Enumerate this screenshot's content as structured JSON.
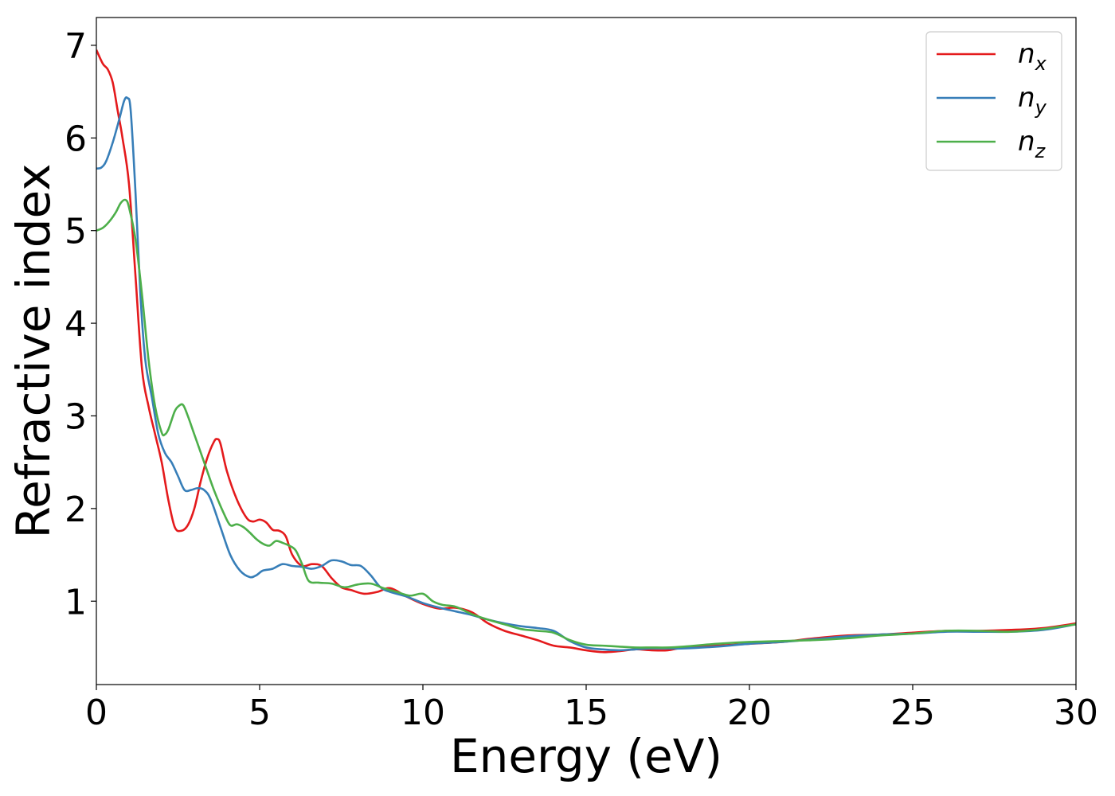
{
  "chart_data": {
    "type": "line",
    "xlabel": "Energy (eV)",
    "ylabel": "Refractive index",
    "xlim": [
      0,
      30
    ],
    "ylim": [
      0.1,
      7.3
    ],
    "xticks": [
      0,
      5,
      10,
      15,
      20,
      25,
      30
    ],
    "yticks": [
      1,
      2,
      3,
      4,
      5,
      6,
      7
    ],
    "grid": false,
    "legend_position": "top-right",
    "series": [
      {
        "name": "n",
        "subscript": "x",
        "color": "#e41a1c",
        "x": [
          0,
          0.2,
          0.35,
          0.5,
          0.65,
          0.8,
          1.0,
          1.2,
          1.4,
          1.6,
          1.8,
          2.0,
          2.2,
          2.4,
          2.6,
          2.8,
          3.0,
          3.2,
          3.4,
          3.6,
          3.7,
          3.8,
          4.0,
          4.3,
          4.6,
          4.8,
          5.0,
          5.2,
          5.4,
          5.6,
          5.8,
          6.0,
          6.3,
          6.6,
          6.9,
          7.2,
          7.5,
          7.8,
          8.2,
          8.6,
          9.0,
          9.5,
          10.0,
          10.5,
          11.0,
          11.5,
          12.0,
          12.5,
          13.0,
          13.5,
          14.0,
          14.5,
          15.0,
          15.5,
          16.0,
          16.5,
          17.0,
          17.5,
          18.0,
          19.0,
          20.0,
          21.0,
          22.0,
          23.0,
          24.0,
          25.0,
          26.0,
          27.0,
          28.0,
          29.0,
          30.0
        ],
        "values": [
          6.95,
          6.8,
          6.74,
          6.6,
          6.3,
          6.0,
          5.5,
          4.5,
          3.5,
          3.1,
          2.8,
          2.5,
          2.1,
          1.8,
          1.76,
          1.82,
          2.0,
          2.3,
          2.55,
          2.72,
          2.75,
          2.7,
          2.4,
          2.1,
          1.9,
          1.86,
          1.88,
          1.85,
          1.77,
          1.76,
          1.7,
          1.5,
          1.38,
          1.4,
          1.38,
          1.25,
          1.15,
          1.12,
          1.08,
          1.1,
          1.14,
          1.05,
          0.97,
          0.92,
          0.93,
          0.88,
          0.76,
          0.68,
          0.63,
          0.58,
          0.52,
          0.5,
          0.47,
          0.45,
          0.46,
          0.48,
          0.47,
          0.47,
          0.5,
          0.52,
          0.54,
          0.56,
          0.6,
          0.63,
          0.64,
          0.66,
          0.68,
          0.68,
          0.69,
          0.71,
          0.76
        ]
      },
      {
        "name": "n",
        "subscript": "y",
        "color": "#377eb8",
        "x": [
          0,
          0.15,
          0.3,
          0.5,
          0.7,
          0.85,
          0.95,
          1.05,
          1.2,
          1.35,
          1.5,
          1.7,
          1.9,
          2.1,
          2.3,
          2.5,
          2.7,
          2.9,
          3.1,
          3.3,
          3.5,
          3.8,
          4.1,
          4.4,
          4.7,
          4.9,
          5.1,
          5.4,
          5.7,
          6.0,
          6.3,
          6.6,
          6.9,
          7.2,
          7.5,
          7.8,
          8.1,
          8.4,
          8.7,
          9.0,
          9.5,
          10.0,
          10.5,
          11.0,
          11.5,
          12.0,
          12.5,
          13.0,
          13.5,
          14.0,
          14.5,
          15.0,
          15.5,
          16.0,
          16.5,
          17.0,
          17.5,
          18.0,
          19.0,
          20.0,
          21.0,
          22.0,
          23.0,
          24.0,
          25.0,
          26.0,
          27.0,
          28.0,
          29.0,
          30.0
        ],
        "values": [
          5.67,
          5.68,
          5.75,
          5.95,
          6.2,
          6.4,
          6.43,
          6.3,
          5.4,
          4.3,
          3.6,
          3.2,
          2.8,
          2.6,
          2.5,
          2.35,
          2.2,
          2.2,
          2.22,
          2.2,
          2.1,
          1.8,
          1.5,
          1.33,
          1.26,
          1.28,
          1.33,
          1.35,
          1.4,
          1.38,
          1.37,
          1.35,
          1.38,
          1.44,
          1.43,
          1.39,
          1.38,
          1.28,
          1.15,
          1.1,
          1.05,
          0.98,
          0.93,
          0.89,
          0.85,
          0.8,
          0.76,
          0.73,
          0.71,
          0.68,
          0.57,
          0.5,
          0.48,
          0.47,
          0.48,
          0.49,
          0.49,
          0.49,
          0.51,
          0.54,
          0.56,
          0.59,
          0.62,
          0.64,
          0.65,
          0.67,
          0.67,
          0.67,
          0.69,
          0.75
        ]
      },
      {
        "name": "n",
        "subscript": "z",
        "color": "#4daf4a",
        "x": [
          0,
          0.2,
          0.4,
          0.6,
          0.75,
          0.9,
          1.0,
          1.2,
          1.4,
          1.6,
          1.8,
          2.0,
          2.1,
          2.2,
          2.3,
          2.4,
          2.5,
          2.65,
          2.8,
          3.0,
          3.3,
          3.6,
          3.9,
          4.1,
          4.3,
          4.5,
          4.7,
          4.9,
          5.1,
          5.3,
          5.5,
          5.7,
          5.9,
          6.1,
          6.3,
          6.5,
          6.8,
          7.2,
          7.6,
          8.0,
          8.4,
          8.8,
          9.2,
          9.6,
          10.0,
          10.3,
          10.6,
          11.0,
          11.5,
          12.0,
          12.5,
          13.0,
          13.5,
          14.0,
          14.5,
          15.0,
          15.5,
          16.0,
          16.5,
          17.0,
          17.5,
          18.0,
          19.0,
          20.0,
          21.0,
          22.0,
          23.0,
          24.0,
          25.0,
          26.0,
          27.0,
          28.0,
          29.0,
          30.0
        ],
        "values": [
          5.0,
          5.03,
          5.1,
          5.2,
          5.3,
          5.33,
          5.25,
          4.9,
          4.3,
          3.6,
          3.1,
          2.82,
          2.8,
          2.85,
          2.95,
          3.05,
          3.1,
          3.12,
          3.0,
          2.8,
          2.5,
          2.2,
          1.95,
          1.82,
          1.83,
          1.8,
          1.74,
          1.67,
          1.62,
          1.6,
          1.65,
          1.63,
          1.6,
          1.55,
          1.4,
          1.22,
          1.2,
          1.19,
          1.15,
          1.18,
          1.19,
          1.14,
          1.1,
          1.06,
          1.08,
          1.0,
          0.96,
          0.94,
          0.86,
          0.8,
          0.75,
          0.7,
          0.68,
          0.66,
          0.58,
          0.53,
          0.52,
          0.51,
          0.5,
          0.5,
          0.5,
          0.51,
          0.54,
          0.56,
          0.57,
          0.58,
          0.6,
          0.63,
          0.65,
          0.68,
          0.68,
          0.67,
          0.7,
          0.75
        ]
      }
    ]
  }
}
